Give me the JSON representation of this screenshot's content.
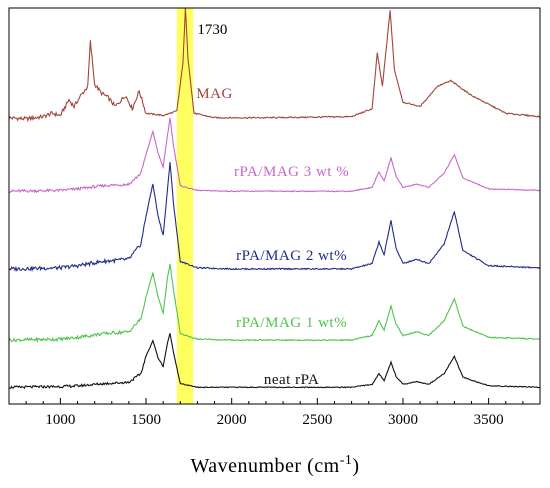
{
  "chart_data": {
    "type": "line",
    "xlabel": "Wavenumber (cm",
    "xlabel_sup": "-1",
    "xlim": [
      700,
      3800
    ],
    "xticks": [
      1000,
      1500,
      2000,
      2500,
      3000,
      3500
    ],
    "xtick_labels": [
      "1000",
      "1500",
      "2000",
      "2500",
      "3000",
      "3500"
    ],
    "grid": false,
    "y_axis_shown": false,
    "highlight_band": {
      "x": [
        1680,
        1775
      ],
      "color": "#ffff44"
    },
    "annotations": [
      {
        "text": "1730",
        "x": 1730
      }
    ],
    "series": [
      {
        "name": "MAG",
        "color": "#a0453a",
        "baseline": 0.0,
        "points": [
          [
            700,
            0.02
          ],
          [
            800,
            0.01
          ],
          [
            900,
            0.03
          ],
          [
            950,
            0.06
          ],
          [
            1000,
            0.04
          ],
          [
            1050,
            0.18
          ],
          [
            1080,
            0.12
          ],
          [
            1120,
            0.22
          ],
          [
            1160,
            0.3
          ],
          [
            1175,
            0.7
          ],
          [
            1185,
            0.55
          ],
          [
            1200,
            0.32
          ],
          [
            1240,
            0.24
          ],
          [
            1280,
            0.2
          ],
          [
            1320,
            0.12
          ],
          [
            1380,
            0.22
          ],
          [
            1420,
            0.1
          ],
          [
            1460,
            0.26
          ],
          [
            1500,
            0.06
          ],
          [
            1600,
            0.04
          ],
          [
            1680,
            0.08
          ],
          [
            1715,
            0.5
          ],
          [
            1730,
            1.0
          ],
          [
            1745,
            0.55
          ],
          [
            1780,
            0.06
          ],
          [
            1900,
            0.02
          ],
          [
            2200,
            0.02
          ],
          [
            2700,
            0.03
          ],
          [
            2820,
            0.1
          ],
          [
            2850,
            0.6
          ],
          [
            2880,
            0.3
          ],
          [
            2925,
            0.98
          ],
          [
            2950,
            0.45
          ],
          [
            3000,
            0.16
          ],
          [
            3100,
            0.12
          ],
          [
            3200,
            0.3
          ],
          [
            3280,
            0.35
          ],
          [
            3400,
            0.22
          ],
          [
            3600,
            0.06
          ],
          [
            3800,
            0.03
          ]
        ]
      },
      {
        "name": "rPA/MAG 3 wt %",
        "color": "#c868c8",
        "baseline": 0.0,
        "points": [
          [
            700,
            0.01
          ],
          [
            1000,
            0.02
          ],
          [
            1100,
            0.04
          ],
          [
            1250,
            0.08
          ],
          [
            1400,
            0.1
          ],
          [
            1470,
            0.24
          ],
          [
            1500,
            0.48
          ],
          [
            1540,
            0.78
          ],
          [
            1570,
            0.5
          ],
          [
            1600,
            0.32
          ],
          [
            1625,
            0.72
          ],
          [
            1640,
            0.95
          ],
          [
            1660,
            0.6
          ],
          [
            1700,
            0.08
          ],
          [
            1800,
            0.02
          ],
          [
            2000,
            0.01
          ],
          [
            2700,
            0.01
          ],
          [
            2820,
            0.06
          ],
          [
            2860,
            0.26
          ],
          [
            2890,
            0.14
          ],
          [
            2930,
            0.44
          ],
          [
            2960,
            0.2
          ],
          [
            3000,
            0.06
          ],
          [
            3080,
            0.1
          ],
          [
            3150,
            0.06
          ],
          [
            3240,
            0.24
          ],
          [
            3300,
            0.48
          ],
          [
            3350,
            0.18
          ],
          [
            3500,
            0.04
          ],
          [
            3800,
            0.02
          ]
        ]
      },
      {
        "name": "rPA/MAG  2  wt%",
        "color": "#1e2c88",
        "baseline": 0.0,
        "points": [
          [
            700,
            0.01
          ],
          [
            1000,
            0.02
          ],
          [
            1100,
            0.04
          ],
          [
            1250,
            0.08
          ],
          [
            1400,
            0.1
          ],
          [
            1470,
            0.24
          ],
          [
            1500,
            0.5
          ],
          [
            1540,
            0.8
          ],
          [
            1570,
            0.5
          ],
          [
            1600,
            0.32
          ],
          [
            1625,
            0.74
          ],
          [
            1640,
            1.0
          ],
          [
            1660,
            0.62
          ],
          [
            1700,
            0.08
          ],
          [
            1800,
            0.02
          ],
          [
            2000,
            0.01
          ],
          [
            2700,
            0.01
          ],
          [
            2820,
            0.06
          ],
          [
            2860,
            0.26
          ],
          [
            2890,
            0.14
          ],
          [
            2930,
            0.46
          ],
          [
            2960,
            0.2
          ],
          [
            3000,
            0.06
          ],
          [
            3080,
            0.1
          ],
          [
            3150,
            0.06
          ],
          [
            3240,
            0.24
          ],
          [
            3300,
            0.54
          ],
          [
            3350,
            0.18
          ],
          [
            3500,
            0.04
          ],
          [
            3800,
            0.02
          ]
        ]
      },
      {
        "name": "rPA/MAG  1  wt%",
        "color": "#4ec44e",
        "baseline": 0.0,
        "points": [
          [
            700,
            0.01
          ],
          [
            1000,
            0.02
          ],
          [
            1100,
            0.04
          ],
          [
            1250,
            0.08
          ],
          [
            1400,
            0.1
          ],
          [
            1470,
            0.24
          ],
          [
            1500,
            0.48
          ],
          [
            1540,
            0.74
          ],
          [
            1570,
            0.48
          ],
          [
            1600,
            0.3
          ],
          [
            1625,
            0.68
          ],
          [
            1640,
            0.84
          ],
          [
            1660,
            0.56
          ],
          [
            1700,
            0.08
          ],
          [
            1800,
            0.02
          ],
          [
            2000,
            0.01
          ],
          [
            2700,
            0.01
          ],
          [
            2820,
            0.06
          ],
          [
            2860,
            0.22
          ],
          [
            2890,
            0.12
          ],
          [
            2930,
            0.38
          ],
          [
            2960,
            0.18
          ],
          [
            3000,
            0.06
          ],
          [
            3080,
            0.1
          ],
          [
            3150,
            0.06
          ],
          [
            3240,
            0.22
          ],
          [
            3300,
            0.46
          ],
          [
            3350,
            0.16
          ],
          [
            3500,
            0.04
          ],
          [
            3800,
            0.02
          ]
        ]
      },
      {
        "name": "neat rPA",
        "color": "#111111",
        "baseline": 0.0,
        "points": [
          [
            700,
            0.01
          ],
          [
            1000,
            0.02
          ],
          [
            1100,
            0.03
          ],
          [
            1250,
            0.06
          ],
          [
            1400,
            0.08
          ],
          [
            1470,
            0.2
          ],
          [
            1500,
            0.44
          ],
          [
            1540,
            0.66
          ],
          [
            1570,
            0.42
          ],
          [
            1600,
            0.3
          ],
          [
            1625,
            0.62
          ],
          [
            1640,
            0.76
          ],
          [
            1660,
            0.5
          ],
          [
            1700,
            0.06
          ],
          [
            1800,
            0.01
          ],
          [
            2000,
            0.01
          ],
          [
            2700,
            0.01
          ],
          [
            2820,
            0.05
          ],
          [
            2860,
            0.2
          ],
          [
            2890,
            0.1
          ],
          [
            2930,
            0.36
          ],
          [
            2960,
            0.16
          ],
          [
            3000,
            0.05
          ],
          [
            3080,
            0.09
          ],
          [
            3150,
            0.05
          ],
          [
            3240,
            0.2
          ],
          [
            3300,
            0.44
          ],
          [
            3350,
            0.15
          ],
          [
            3500,
            0.03
          ],
          [
            3800,
            0.01
          ]
        ]
      }
    ]
  }
}
